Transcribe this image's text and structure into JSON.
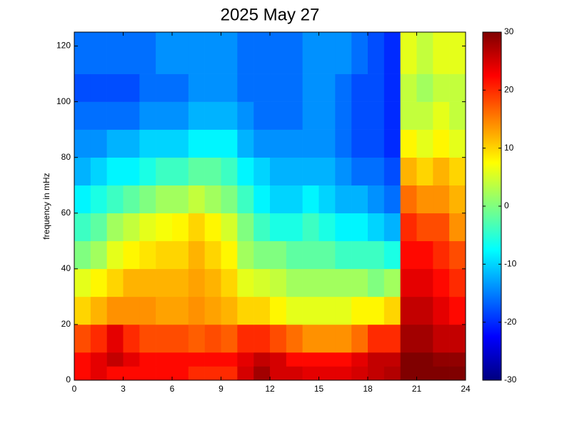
{
  "chart_data": {
    "type": "heatmap",
    "title": "2025 May 27",
    "ylabel": "frequency in mHz",
    "x": [
      0,
      1,
      2,
      3,
      4,
      5,
      6,
      7,
      8,
      9,
      10,
      11,
      12,
      13,
      14,
      15,
      16,
      17,
      18,
      19,
      20,
      21,
      22,
      23,
      24
    ],
    "y": [
      0,
      5,
      10,
      20,
      30,
      40,
      50,
      60,
      70,
      80,
      90,
      100,
      110,
      125
    ],
    "values": [
      [
        22,
        24,
        22,
        22,
        22,
        22,
        22,
        20,
        20,
        20,
        25,
        28,
        25,
        25,
        24,
        24,
        24,
        25,
        26,
        27,
        30,
        30,
        30,
        30
      ],
      [
        22,
        24,
        26,
        24,
        22,
        22,
        22,
        22,
        22,
        22,
        24,
        26,
        25,
        22,
        22,
        22,
        22,
        24,
        26,
        26,
        30,
        30,
        29,
        29
      ],
      [
        18,
        20,
        24,
        20,
        18,
        18,
        18,
        17,
        18,
        17,
        20,
        20,
        18,
        16,
        14,
        14,
        14,
        16,
        20,
        20,
        28,
        28,
        26,
        26
      ],
      [
        10,
        12,
        14,
        14,
        14,
        13,
        13,
        14,
        13,
        12,
        10,
        10,
        8,
        6,
        6,
        6,
        6,
        8,
        8,
        10,
        26,
        26,
        24,
        22
      ],
      [
        6,
        8,
        10,
        12,
        12,
        12,
        12,
        13,
        12,
        10,
        6,
        5,
        4,
        2,
        2,
        2,
        2,
        2,
        0,
        2,
        24,
        24,
        22,
        20
      ],
      [
        0,
        2,
        6,
        8,
        9,
        10,
        10,
        12,
        10,
        8,
        2,
        0,
        0,
        -2,
        -2,
        -2,
        -4,
        -4,
        -4,
        -6,
        22,
        22,
        20,
        18
      ],
      [
        -4,
        -2,
        2,
        4,
        6,
        7,
        8,
        10,
        8,
        5,
        0,
        -4,
        -6,
        -6,
        -4,
        -6,
        -8,
        -8,
        -10,
        -12,
        20,
        18,
        18,
        14
      ],
      [
        -8,
        -6,
        -4,
        -2,
        0,
        2,
        2,
        4,
        2,
        0,
        -4,
        -8,
        -10,
        -10,
        -8,
        -10,
        -12,
        -12,
        -14,
        -16,
        16,
        14,
        14,
        12
      ],
      [
        -12,
        -10,
        -8,
        -8,
        -6,
        -4,
        -4,
        -2,
        -2,
        -4,
        -8,
        -10,
        -12,
        -12,
        -12,
        -12,
        -14,
        -16,
        -16,
        -18,
        12,
        10,
        12,
        10
      ],
      [
        -14,
        -14,
        -12,
        -12,
        -10,
        -10,
        -10,
        -8,
        -8,
        -8,
        -12,
        -14,
        -14,
        -14,
        -14,
        -14,
        -16,
        -18,
        -18,
        -20,
        8,
        6,
        8,
        6
      ],
      [
        -16,
        -16,
        -16,
        -16,
        -14,
        -14,
        -14,
        -12,
        -12,
        -12,
        -14,
        -16,
        -16,
        -16,
        -14,
        -14,
        -16,
        -18,
        -18,
        -20,
        4,
        4,
        6,
        4
      ],
      [
        -18,
        -18,
        -18,
        -18,
        -16,
        -16,
        -16,
        -14,
        -14,
        -14,
        -16,
        -16,
        -16,
        -16,
        -14,
        -14,
        -16,
        -18,
        -18,
        -20,
        4,
        2,
        4,
        4
      ],
      [
        -16,
        -16,
        -16,
        -16,
        -16,
        -14,
        -14,
        -14,
        -14,
        -14,
        -16,
        -16,
        -16,
        -16,
        -14,
        -14,
        -14,
        -16,
        -18,
        -20,
        6,
        4,
        6,
        6
      ]
    ],
    "xlim": [
      0,
      24
    ],
    "xticks": [
      0,
      3,
      6,
      9,
      12,
      15,
      18,
      21,
      24
    ],
    "ylim": [
      0,
      125
    ],
    "yticks": [
      0,
      20,
      40,
      60,
      80,
      100,
      120
    ],
    "clim": [
      -30,
      30
    ],
    "cticks": [
      -30,
      -20,
      -10,
      0,
      10,
      20,
      30
    ],
    "colormap": "jet"
  }
}
